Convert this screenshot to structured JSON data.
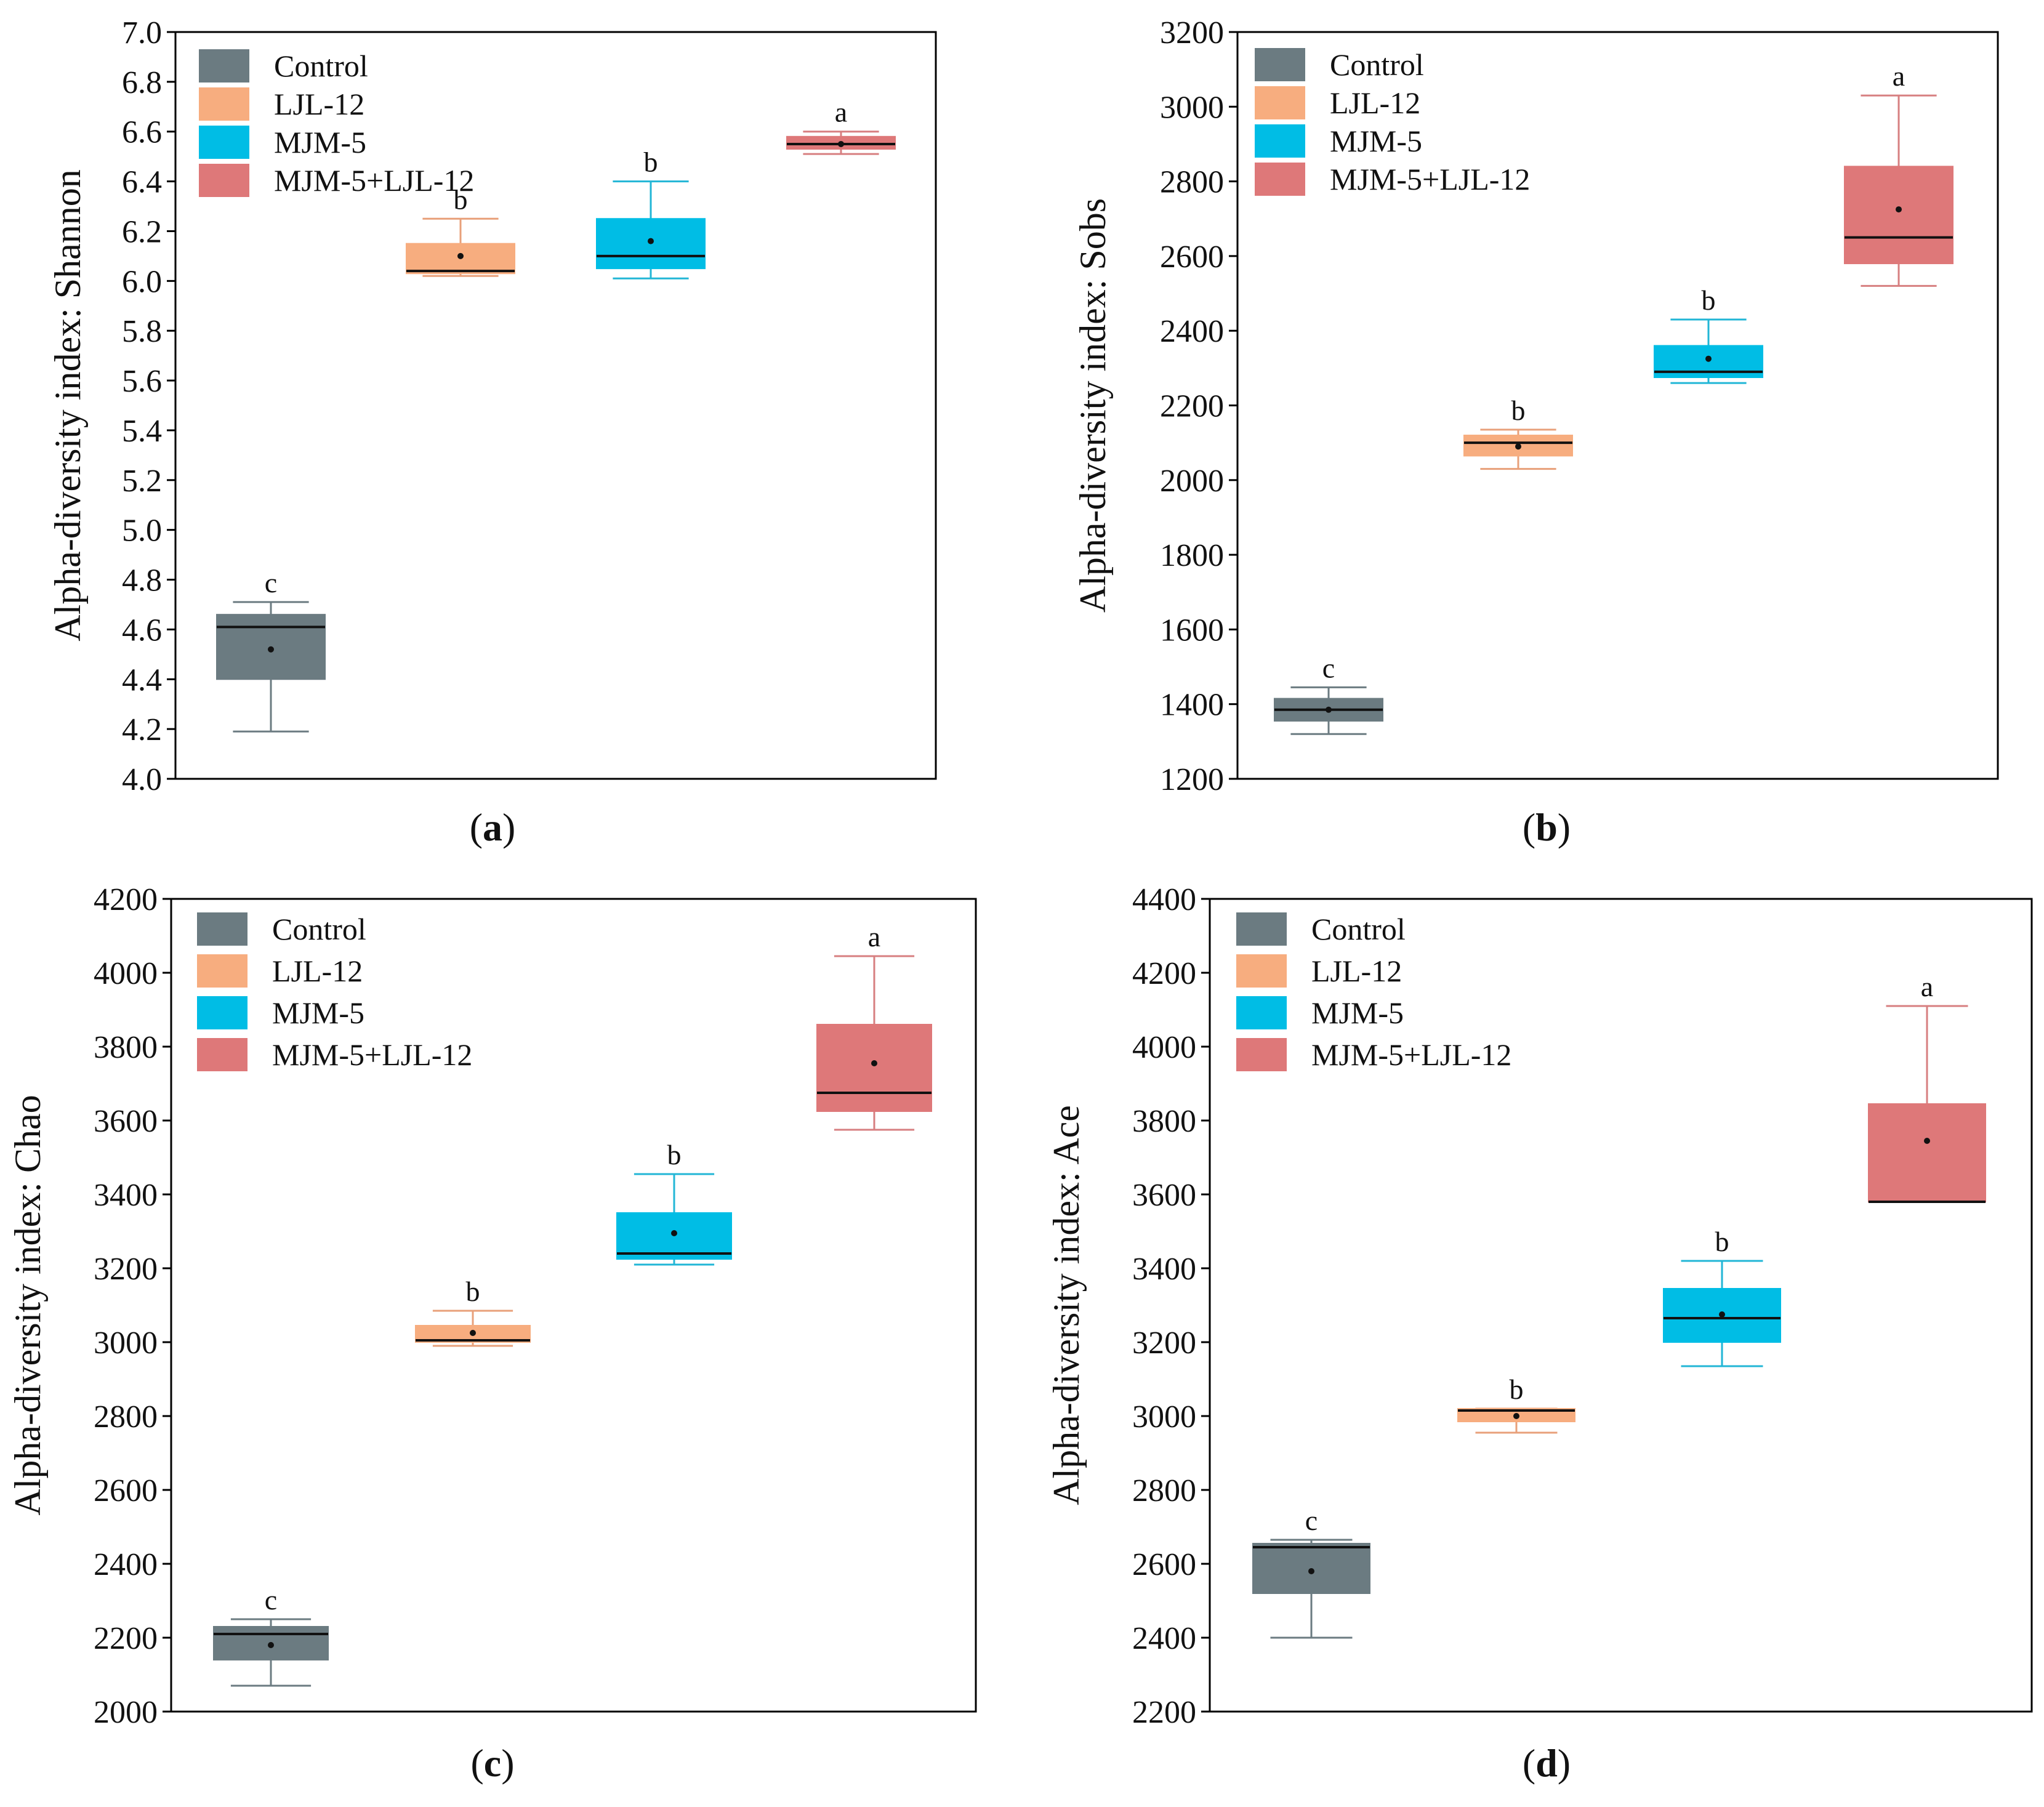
{
  "colors": {
    "Control": "#6b7b81",
    "LJL-12": "#f7ad7f",
    "MJM-5": "#00bde5",
    "MJM-5+LJL-12": "#de7879",
    "whisker_Control": "#6b7b81",
    "whisker_LJL-12": "#e8a07a",
    "whisker_MJM-5": "#22b6d6",
    "whisker_MJM-5+LJL-12": "#d77f80"
  },
  "legend": [
    "Control",
    "LJL-12",
    "MJM-5",
    "MJM-5+LJL-12"
  ],
  "chart_data": [
    {
      "type": "box",
      "panel_label": "a",
      "ylabel": "Alpha-diversity index: Shannon",
      "ylim": [
        4.0,
        7.0
      ],
      "yticks": [
        "4.0",
        "4.2",
        "4.4",
        "4.6",
        "4.8",
        "5.0",
        "5.2",
        "5.4",
        "5.6",
        "5.8",
        "6.0",
        "6.2",
        "6.4",
        "6.6",
        "6.8",
        "7.0"
      ],
      "legend_position": "top-left",
      "groups": [
        {
          "name": "Control",
          "min": 4.19,
          "q1": 4.4,
          "median": 4.61,
          "q3": 4.66,
          "max": 4.71,
          "mean": 4.52,
          "letter": "c"
        },
        {
          "name": "LJL-12",
          "min": 6.02,
          "q1": 6.03,
          "median": 6.04,
          "q3": 6.15,
          "max": 6.25,
          "mean": 6.1,
          "letter": "b"
        },
        {
          "name": "MJM-5",
          "min": 6.01,
          "q1": 6.05,
          "median": 6.1,
          "q3": 6.25,
          "max": 6.4,
          "mean": 6.16,
          "letter": "b"
        },
        {
          "name": "MJM-5+LJL-12",
          "min": 6.51,
          "q1": 6.53,
          "median": 6.55,
          "q3": 6.58,
          "max": 6.6,
          "mean": 6.55,
          "letter": "a"
        }
      ]
    },
    {
      "type": "box",
      "panel_label": "b",
      "ylabel": "Alpha-diversity index: Sobs",
      "ylim": [
        1200,
        3200
      ],
      "yticks": [
        "1200",
        "1400",
        "1600",
        "1800",
        "2000",
        "2200",
        "2400",
        "2600",
        "2800",
        "3000",
        "3200"
      ],
      "legend_position": "top-left",
      "groups": [
        {
          "name": "Control",
          "min": 1320,
          "q1": 1355,
          "median": 1385,
          "q3": 1415,
          "max": 1445,
          "mean": 1385,
          "letter": "c"
        },
        {
          "name": "LJL-12",
          "min": 2030,
          "q1": 2065,
          "median": 2100,
          "q3": 2120,
          "max": 2135,
          "mean": 2090,
          "letter": "b"
        },
        {
          "name": "MJM-5",
          "min": 2260,
          "q1": 2275,
          "median": 2290,
          "q3": 2360,
          "max": 2430,
          "mean": 2325,
          "letter": "b"
        },
        {
          "name": "MJM-5+LJL-12",
          "min": 2520,
          "q1": 2580,
          "median": 2650,
          "q3": 2840,
          "max": 3030,
          "mean": 2725,
          "letter": "a"
        }
      ]
    },
    {
      "type": "box",
      "panel_label": "c",
      "ylabel": "Alpha-diversity index: Chao",
      "ylim": [
        2000,
        4200
      ],
      "yticks": [
        "2000",
        "2200",
        "2400",
        "2600",
        "2800",
        "3000",
        "3200",
        "3400",
        "3600",
        "3800",
        "4000",
        "4200"
      ],
      "legend_position": "top-left",
      "groups": [
        {
          "name": "Control",
          "min": 2070,
          "q1": 2140,
          "median": 2210,
          "q3": 2230,
          "max": 2250,
          "mean": 2180,
          "letter": "c"
        },
        {
          "name": "LJL-12",
          "min": 2990,
          "q1": 3000,
          "median": 3005,
          "q3": 3045,
          "max": 3085,
          "mean": 3025,
          "letter": "b"
        },
        {
          "name": "MJM-5",
          "min": 3210,
          "q1": 3225,
          "median": 3240,
          "q3": 3350,
          "max": 3455,
          "mean": 3295,
          "letter": "b"
        },
        {
          "name": "MJM-5+LJL-12",
          "min": 3575,
          "q1": 3625,
          "median": 3675,
          "q3": 3860,
          "max": 4045,
          "mean": 3755,
          "letter": "a"
        }
      ]
    },
    {
      "type": "box",
      "panel_label": "d",
      "ylabel": "Alpha-diversity index: Ace",
      "ylim": [
        2200,
        4400
      ],
      "yticks": [
        "2200",
        "2400",
        "2600",
        "2800",
        "3000",
        "3200",
        "3400",
        "3600",
        "3800",
        "4000",
        "4200",
        "4400"
      ],
      "legend_position": "top-left",
      "groups": [
        {
          "name": "Control",
          "min": 2400,
          "q1": 2520,
          "median": 2645,
          "q3": 2655,
          "max": 2665,
          "mean": 2580,
          "letter": "c"
        },
        {
          "name": "LJL-12",
          "min": 2955,
          "q1": 2985,
          "median": 3015,
          "q3": 3020,
          "max": 3020,
          "mean": 3000,
          "letter": "b"
        },
        {
          "name": "MJM-5",
          "min": 3135,
          "q1": 3200,
          "median": 3265,
          "q3": 3345,
          "max": 3420,
          "mean": 3275,
          "letter": "b"
        },
        {
          "name": "MJM-5+LJL-12",
          "min": 3580,
          "q1": 3580,
          "median": 3580,
          "q3": 3845,
          "max": 4110,
          "mean": 3745,
          "letter": "a"
        }
      ]
    }
  ]
}
